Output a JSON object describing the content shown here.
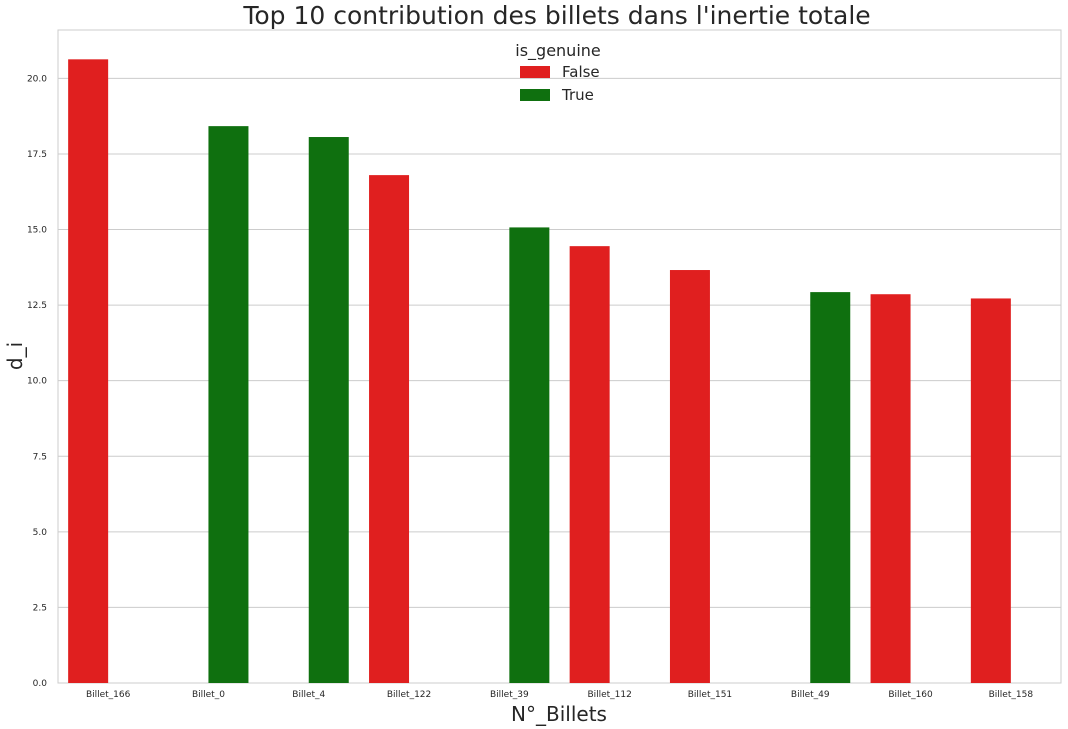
{
  "chart_data": {
    "type": "bar",
    "title": "Top 10 contribution des billets dans l'inertie totale",
    "xlabel": "N°_Billets",
    "ylabel": "d_i",
    "ylim": [
      0,
      21.6
    ],
    "yticks": [
      "0.0",
      "2.5",
      "5.0",
      "7.5",
      "10.0",
      "12.5",
      "15.0",
      "17.5",
      "20.0"
    ],
    "categories": [
      "Billet_166",
      "Billet_0",
      "Billet_4",
      "Billet_122",
      "Billet_39",
      "Billet_112",
      "Billet_151",
      "Billet_49",
      "Billet_160",
      "Billet_158"
    ],
    "legend": {
      "title": "is_genuine",
      "position": "top-center"
    },
    "grid": "horizontal",
    "series": [
      {
        "name": "False",
        "color": "#e01f1f",
        "values": [
          20.63,
          null,
          null,
          16.8,
          null,
          14.45,
          13.66,
          null,
          12.86,
          12.72
        ]
      },
      {
        "name": "True",
        "color": "#0f700f",
        "values": [
          null,
          18.42,
          18.06,
          null,
          15.07,
          null,
          null,
          12.93,
          null,
          null
        ]
      }
    ]
  }
}
